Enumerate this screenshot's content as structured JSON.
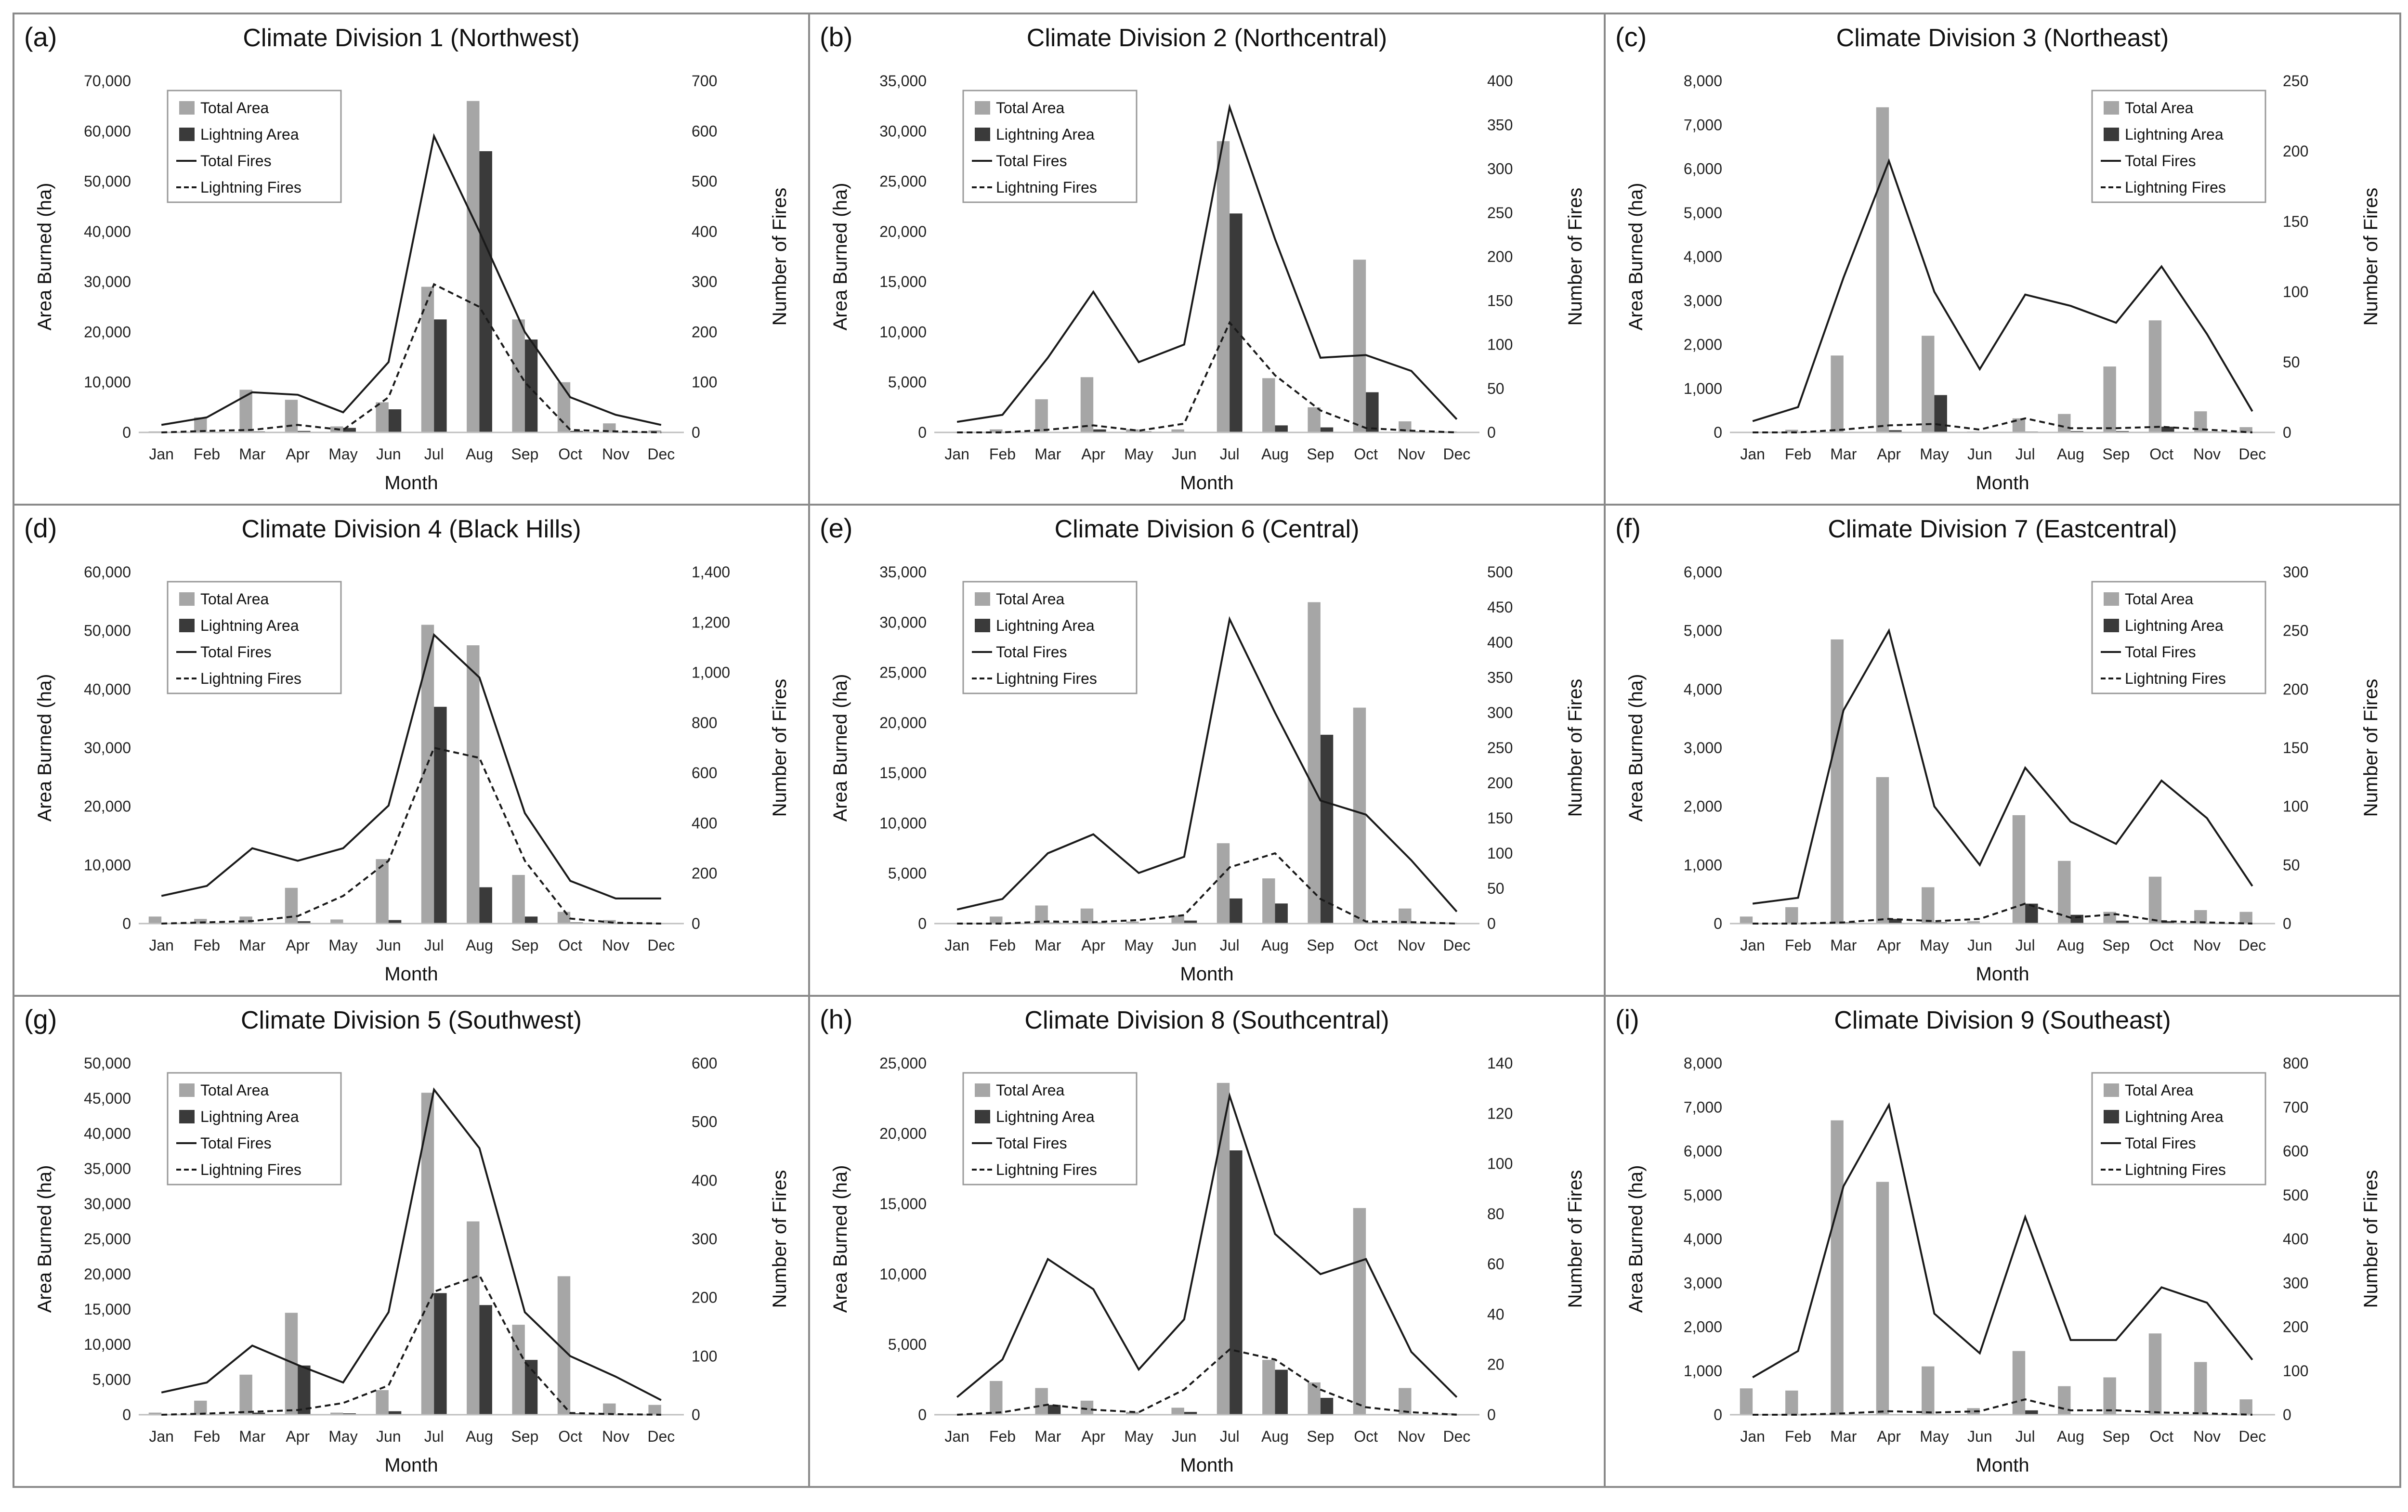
{
  "colors": {
    "total_area": "#a6a6a6",
    "lightning_area": "#3a3a3a",
    "lines": "#1a1a1a",
    "border": "#8a8a8a"
  },
  "months": [
    "Jan",
    "Feb",
    "Mar",
    "Apr",
    "May",
    "Jun",
    "Jul",
    "Aug",
    "Sep",
    "Oct",
    "Nov",
    "Dec"
  ],
  "legend_labels": [
    "Total Area",
    "Lightning Area",
    "Total Fires",
    "Lightning Fires"
  ],
  "chart_data": [
    {
      "type": "bar+line",
      "label": "(a)",
      "title": "Climate Division 1 (Northwest)",
      "xlabel": "Month",
      "ylabel": "Area Burned (ha)",
      "y2label": "Number of Fires",
      "ylim": [
        0,
        70000
      ],
      "yticks": [
        "0",
        "10,000",
        "20,000",
        "30,000",
        "40,000",
        "50,000",
        "60,000",
        "70,000"
      ],
      "y2lim": [
        0,
        700
      ],
      "y2ticks": [
        "0",
        "100",
        "200",
        "300",
        "400",
        "500",
        "600",
        "700"
      ],
      "legend_position": "top-left",
      "series": [
        {
          "name": "Total Area",
          "kind": "bar",
          "values": [
            200,
            3000,
            8500,
            6500,
            1200,
            6000,
            29000,
            66000,
            22500,
            10000,
            1800,
            400
          ]
        },
        {
          "name": "Lightning Area",
          "kind": "bar",
          "values": [
            0,
            0,
            200,
            300,
            900,
            4600,
            22500,
            56000,
            18500,
            300,
            50,
            0
          ]
        },
        {
          "name": "Total Fires",
          "kind": "line",
          "values": [
            15,
            30,
            80,
            75,
            40,
            140,
            590,
            400,
            200,
            70,
            35,
            15
          ]
        },
        {
          "name": "Lightning Fires",
          "kind": "dashed-line",
          "values": [
            0,
            3,
            5,
            15,
            5,
            70,
            295,
            250,
            100,
            5,
            2,
            0
          ]
        }
      ]
    },
    {
      "type": "bar+line",
      "label": "(b)",
      "title": "Climate Division 2 (Northcentral)",
      "xlabel": "Month",
      "ylabel": "Area Burned (ha)",
      "y2label": "Number of Fires",
      "ylim": [
        0,
        35000
      ],
      "yticks": [
        "0",
        "5,000",
        "10,000",
        "15,000",
        "20,000",
        "25,000",
        "30,000",
        "35,000"
      ],
      "y2lim": [
        0,
        400
      ],
      "y2ticks": [
        "0",
        "50",
        "100",
        "150",
        "200",
        "250",
        "300",
        "350",
        "400"
      ],
      "legend_position": "top-left",
      "series": [
        {
          "name": "Total Area",
          "kind": "bar",
          "values": [
            0,
            300,
            3300,
            5500,
            300,
            300,
            29000,
            5400,
            2500,
            17200,
            1100,
            100
          ]
        },
        {
          "name": "Lightning Area",
          "kind": "bar",
          "values": [
            0,
            0,
            50,
            300,
            100,
            50,
            21800,
            700,
            500,
            4000,
            100,
            0
          ]
        },
        {
          "name": "Total Fires",
          "kind": "line",
          "values": [
            12,
            20,
            85,
            160,
            80,
            100,
            370,
            220,
            85,
            88,
            70,
            15
          ]
        },
        {
          "name": "Lightning Fires",
          "kind": "dashed-line",
          "values": [
            0,
            0,
            3,
            8,
            2,
            10,
            125,
            65,
            25,
            5,
            2,
            0
          ]
        }
      ]
    },
    {
      "type": "bar+line",
      "label": "(c)",
      "title": "Climate Division 3 (Northeast)",
      "xlabel": "Month",
      "ylabel": "Area Burned (ha)",
      "y2label": "Number of Fires",
      "ylim": [
        0,
        8000
      ],
      "yticks": [
        "0",
        "1,000",
        "2,000",
        "3,000",
        "4,000",
        "5,000",
        "6,000",
        "7,000",
        "8,000"
      ],
      "y2lim": [
        0,
        250
      ],
      "y2ticks": [
        "0",
        "50",
        "100",
        "150",
        "200",
        "250"
      ],
      "legend_position": "top-right",
      "series": [
        {
          "name": "Total Area",
          "kind": "bar",
          "values": [
            0,
            60,
            1750,
            7400,
            2200,
            20,
            320,
            420,
            1500,
            2550,
            480,
            120
          ]
        },
        {
          "name": "Lightning Area",
          "kind": "bar",
          "values": [
            0,
            0,
            0,
            50,
            850,
            0,
            20,
            30,
            30,
            130,
            20,
            0
          ]
        },
        {
          "name": "Total Fires",
          "kind": "line",
          "values": [
            8,
            18,
            110,
            193,
            100,
            45,
            98,
            90,
            78,
            118,
            70,
            15
          ]
        },
        {
          "name": "Lightning Fires",
          "kind": "dashed-line",
          "values": [
            0,
            0,
            2,
            5,
            6,
            2,
            10,
            3,
            3,
            4,
            2,
            0
          ]
        }
      ]
    },
    {
      "type": "bar+line",
      "label": "(d)",
      "title": "Climate Division 4 (Black Hills)",
      "xlabel": "Month",
      "ylabel": "Area Burned (ha)",
      "y2label": "Number of Fires",
      "ylim": [
        0,
        60000
      ],
      "yticks": [
        "0",
        "10,000",
        "20,000",
        "30,000",
        "40,000",
        "50,000",
        "60,000"
      ],
      "y2lim": [
        0,
        1400
      ],
      "y2ticks": [
        "0",
        "200",
        "400",
        "600",
        "800",
        "1,000",
        "1,200",
        "1,400"
      ],
      "legend_position": "top-left",
      "series": [
        {
          "name": "Total Area",
          "kind": "bar",
          "values": [
            1200,
            800,
            1200,
            6100,
            700,
            11000,
            51000,
            47500,
            8300,
            2000,
            600,
            100
          ]
        },
        {
          "name": "Lightning Area",
          "kind": "bar",
          "values": [
            0,
            0,
            0,
            400,
            100,
            600,
            37000,
            6200,
            1200,
            200,
            50,
            0
          ]
        },
        {
          "name": "Total Fires",
          "kind": "line",
          "values": [
            110,
            150,
            300,
            250,
            300,
            470,
            1150,
            980,
            440,
            170,
            100,
            100
          ]
        },
        {
          "name": "Lightning Fires",
          "kind": "dashed-line",
          "values": [
            0,
            5,
            10,
            30,
            110,
            250,
            700,
            660,
            250,
            20,
            3,
            0
          ]
        }
      ]
    },
    {
      "type": "bar+line",
      "label": "(e)",
      "title": "Climate Division 6 (Central)",
      "xlabel": "Month",
      "ylabel": "Area Burned (ha)",
      "y2label": "Number of Fires",
      "ylim": [
        0,
        35000
      ],
      "yticks": [
        "0",
        "5,000",
        "10,000",
        "15,000",
        "20,000",
        "25,000",
        "30,000",
        "35,000"
      ],
      "y2lim": [
        0,
        500
      ],
      "y2ticks": [
        "0",
        "50",
        "100",
        "150",
        "200",
        "250",
        "300",
        "350",
        "400",
        "450",
        "500"
      ],
      "legend_position": "top-left",
      "series": [
        {
          "name": "Total Area",
          "kind": "bar",
          "values": [
            0,
            700,
            1800,
            1500,
            200,
            800,
            8000,
            4500,
            32000,
            21500,
            1500,
            100
          ]
        },
        {
          "name": "Lightning Area",
          "kind": "bar",
          "values": [
            0,
            0,
            100,
            100,
            50,
            300,
            2500,
            2000,
            18800,
            100,
            50,
            0
          ]
        },
        {
          "name": "Total Fires",
          "kind": "line",
          "values": [
            20,
            35,
            100,
            127,
            72,
            95,
            433,
            300,
            175,
            155,
            90,
            17
          ]
        },
        {
          "name": "Lightning Fires",
          "kind": "dashed-line",
          "values": [
            0,
            0,
            3,
            2,
            5,
            12,
            80,
            100,
            35,
            3,
            2,
            0
          ]
        }
      ]
    },
    {
      "type": "bar+line",
      "label": "(f)",
      "title": "Climate Division 7 (Eastcentral)",
      "xlabel": "Month",
      "ylabel": "Area Burned (ha)",
      "y2label": "Number of Fires",
      "ylim": [
        0,
        6000
      ],
      "yticks": [
        "0",
        "1,000",
        "2,000",
        "3,000",
        "4,000",
        "5,000",
        "6,000"
      ],
      "y2lim": [
        0,
        300
      ],
      "y2ticks": [
        "0",
        "50",
        "100",
        "150",
        "200",
        "250",
        "300"
      ],
      "legend_position": "top-right",
      "series": [
        {
          "name": "Total Area",
          "kind": "bar",
          "values": [
            120,
            280,
            4850,
            2500,
            620,
            40,
            1850,
            1070,
            200,
            800,
            230,
            200
          ]
        },
        {
          "name": "Lightning Area",
          "kind": "bar",
          "values": [
            0,
            0,
            20,
            80,
            20,
            10,
            340,
            150,
            50,
            40,
            10,
            0
          ]
        },
        {
          "name": "Total Fires",
          "kind": "line",
          "values": [
            17,
            22,
            182,
            250,
            100,
            50,
            133,
            87,
            68,
            122,
            90,
            32
          ]
        },
        {
          "name": "Lightning Fires",
          "kind": "dashed-line",
          "values": [
            0,
            0,
            1,
            4,
            2,
            4,
            17,
            5,
            8,
            2,
            1,
            0
          ]
        }
      ]
    },
    {
      "type": "bar+line",
      "label": "(g)",
      "title": "Climate Division 5 (Southwest)",
      "xlabel": "Month",
      "ylabel": "Area Burned (ha)",
      "y2label": "Number of Fires",
      "ylim": [
        0,
        50000
      ],
      "yticks": [
        "0",
        "5,000",
        "10,000",
        "15,000",
        "20,000",
        "25,000",
        "30,000",
        "35,000",
        "40,000",
        "45,000",
        "50,000"
      ],
      "y2lim": [
        0,
        600
      ],
      "y2ticks": [
        "0",
        "100",
        "200",
        "300",
        "400",
        "500",
        "600"
      ],
      "legend_position": "top-left",
      "series": [
        {
          "name": "Total Area",
          "kind": "bar",
          "values": [
            300,
            2000,
            5700,
            14500,
            300,
            3500,
            45800,
            27500,
            12800,
            19700,
            1600,
            1400
          ]
        },
        {
          "name": "Lightning Area",
          "kind": "bar",
          "values": [
            0,
            0,
            300,
            7000,
            200,
            500,
            17300,
            15600,
            7800,
            200,
            100,
            0
          ]
        },
        {
          "name": "Total Fires",
          "kind": "line",
          "values": [
            38,
            55,
            118,
            85,
            55,
            175,
            555,
            455,
            175,
            100,
            65,
            25
          ]
        },
        {
          "name": "Lightning Fires",
          "kind": "dashed-line",
          "values": [
            0,
            2,
            5,
            8,
            20,
            50,
            210,
            238,
            90,
            3,
            1,
            0
          ]
        }
      ]
    },
    {
      "type": "bar+line",
      "label": "(h)",
      "title": "Climate Division 8 (Southcentral)",
      "xlabel": "Month",
      "ylabel": "Area Burned (ha)",
      "y2label": "Number of Fires",
      "ylim": [
        0,
        25000
      ],
      "yticks": [
        "0",
        "5,000",
        "10,000",
        "15,000",
        "20,000",
        "25,000"
      ],
      "y2lim": [
        0,
        140
      ],
      "y2ticks": [
        "0",
        "20",
        "40",
        "60",
        "80",
        "100",
        "120",
        "140"
      ],
      "legend_position": "top-left",
      "series": [
        {
          "name": "Total Area",
          "kind": "bar",
          "values": [
            0,
            2400,
            1900,
            1000,
            200,
            500,
            23600,
            3900,
            2300,
            14700,
            1900,
            100
          ]
        },
        {
          "name": "Lightning Area",
          "kind": "bar",
          "values": [
            0,
            0,
            700,
            0,
            0,
            200,
            18800,
            3200,
            1200,
            0,
            0,
            0
          ]
        },
        {
          "name": "Total Fires",
          "kind": "line",
          "values": [
            7,
            22,
            62,
            50,
            18,
            38,
            127,
            72,
            56,
            62,
            25,
            7
          ]
        },
        {
          "name": "Lightning Fires",
          "kind": "dashed-line",
          "values": [
            0,
            1,
            4,
            2,
            1,
            10,
            26,
            22,
            10,
            3,
            1,
            0
          ]
        }
      ]
    },
    {
      "type": "bar+line",
      "label": "(i)",
      "title": "Climate Division 9 (Southeast)",
      "xlabel": "Month",
      "ylabel": "Area Burned (ha)",
      "y2label": "Number of Fires",
      "ylim": [
        0,
        8000
      ],
      "yticks": [
        "0",
        "1,000",
        "2,000",
        "3,000",
        "4,000",
        "5,000",
        "6,000",
        "7,000",
        "8,000"
      ],
      "y2lim": [
        0,
        800
      ],
      "y2ticks": [
        "0",
        "100",
        "200",
        "300",
        "400",
        "500",
        "600",
        "700",
        "800"
      ],
      "legend_position": "top-right",
      "series": [
        {
          "name": "Total Area",
          "kind": "bar",
          "values": [
            600,
            550,
            6700,
            5300,
            1100,
            150,
            1450,
            650,
            850,
            1850,
            1200,
            350
          ]
        },
        {
          "name": "Lightning Area",
          "kind": "bar",
          "values": [
            0,
            0,
            0,
            0,
            0,
            0,
            100,
            0,
            0,
            0,
            0,
            0
          ]
        },
        {
          "name": "Total Fires",
          "kind": "line",
          "values": [
            85,
            145,
            520,
            705,
            230,
            140,
            450,
            170,
            170,
            290,
            255,
            125
          ]
        },
        {
          "name": "Lightning Fires",
          "kind": "dashed-line",
          "values": [
            0,
            0,
            3,
            8,
            5,
            8,
            35,
            10,
            10,
            5,
            3,
            0
          ]
        }
      ]
    }
  ]
}
